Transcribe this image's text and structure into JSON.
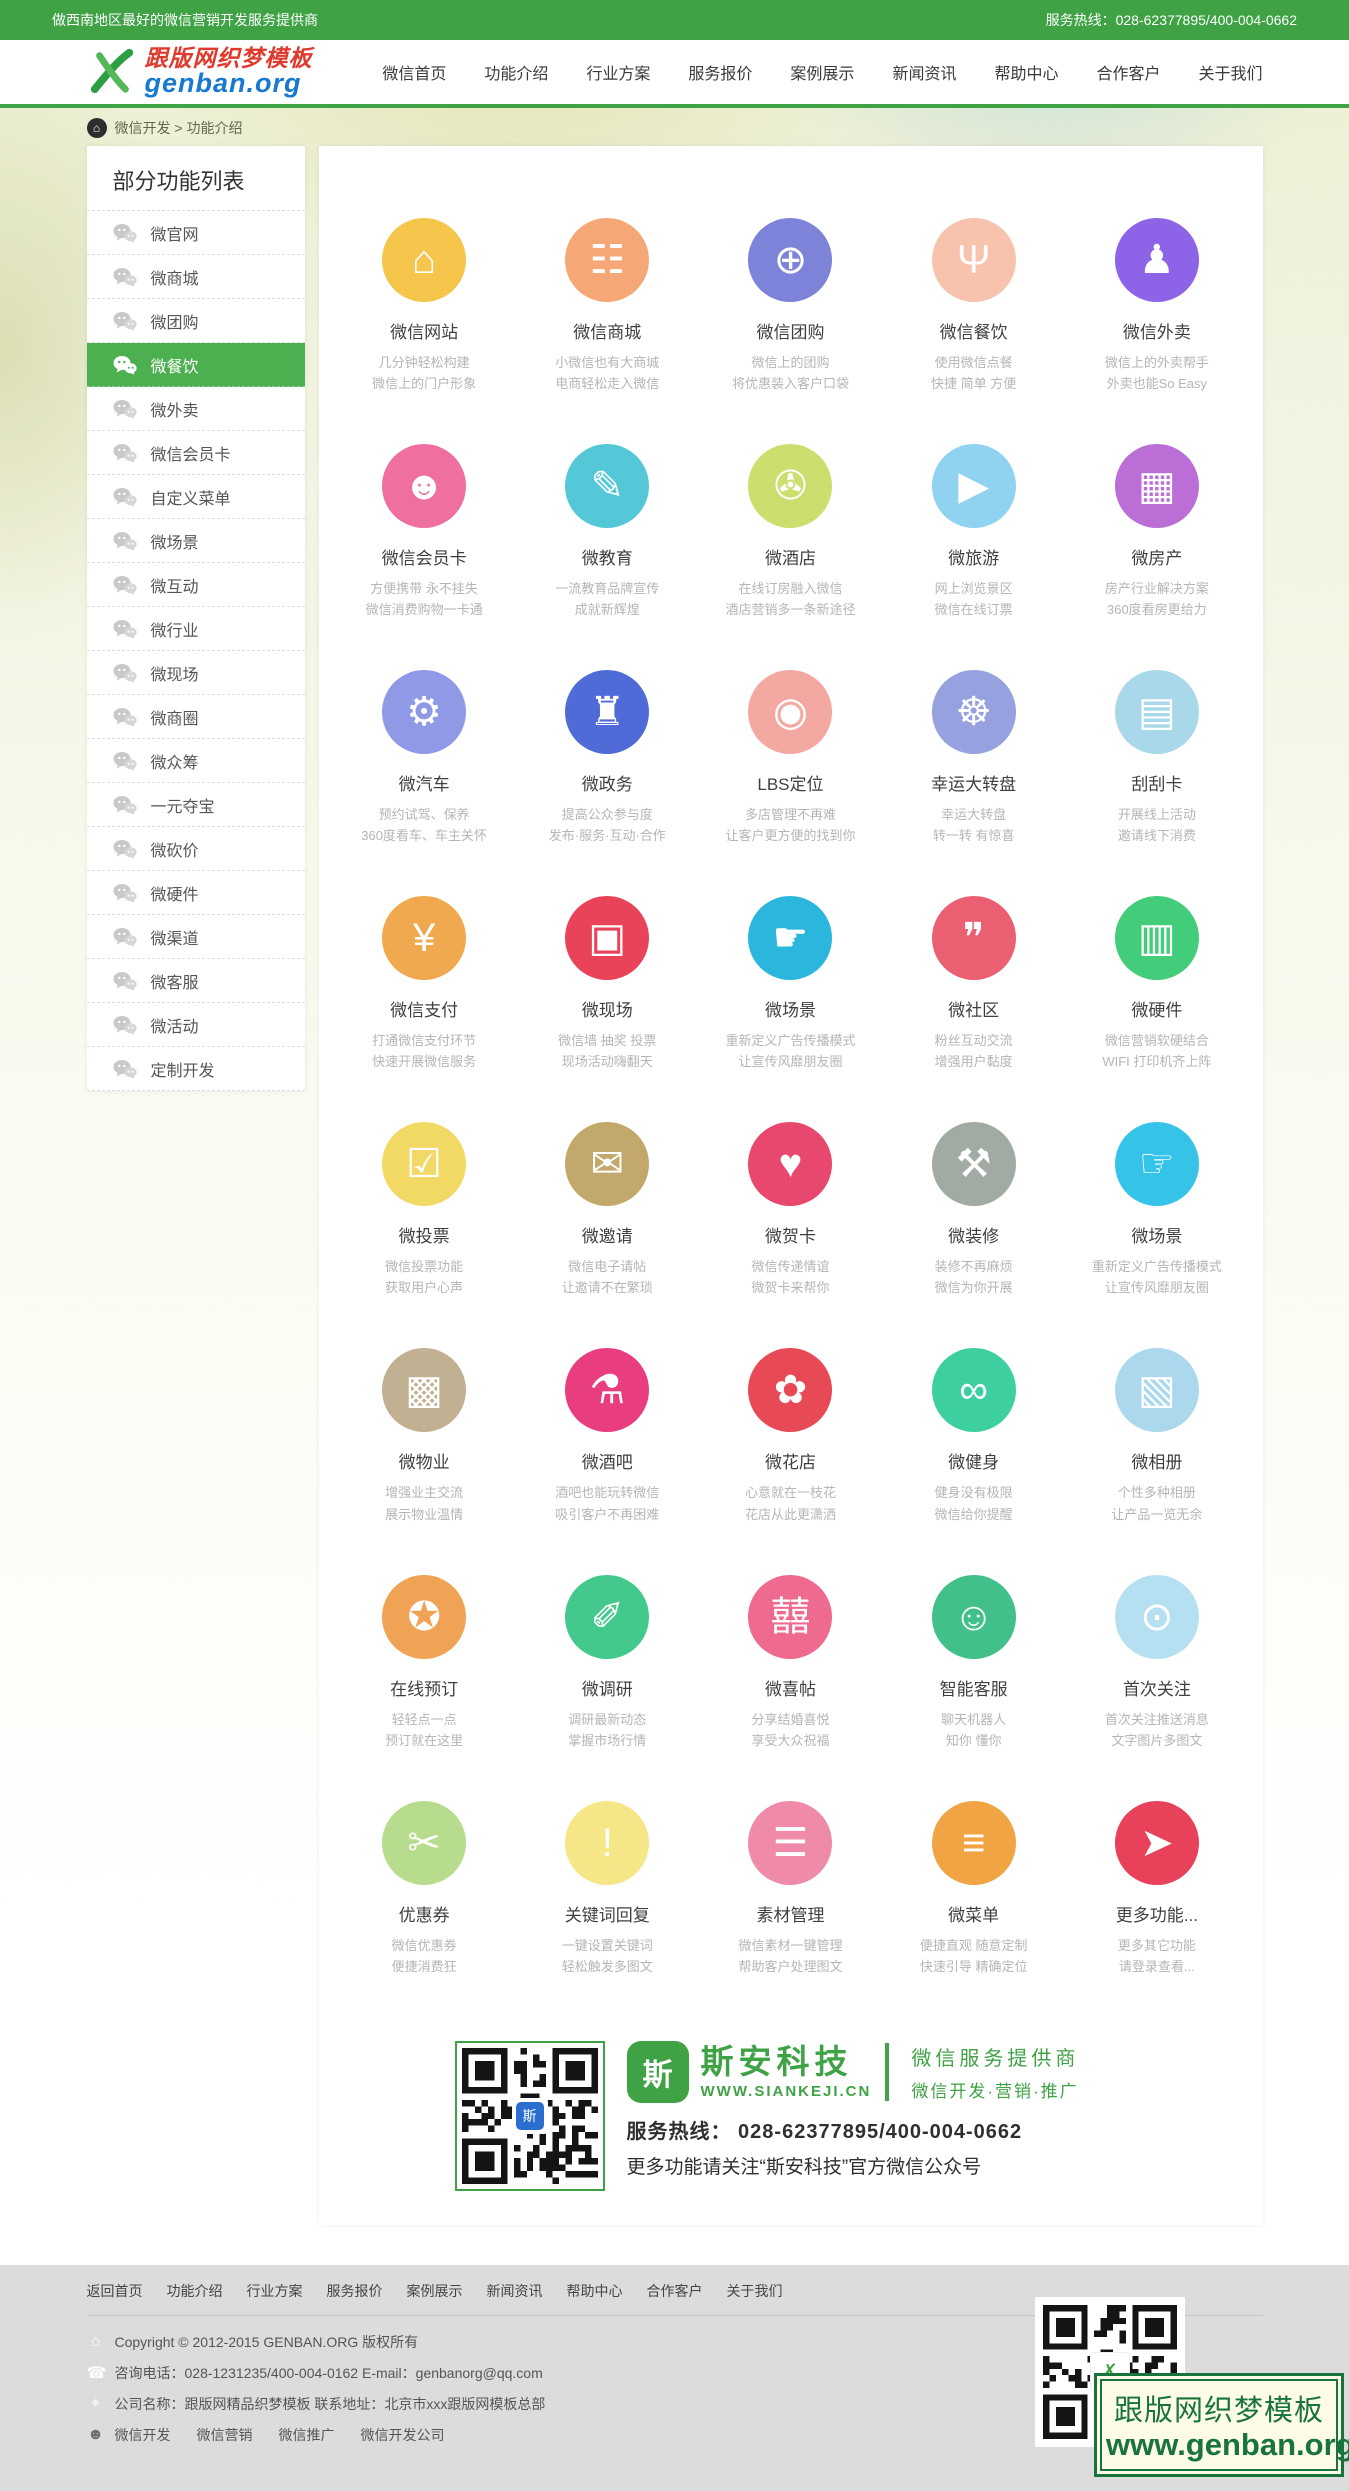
{
  "topbar": {
    "slogan": "做西南地区最好的微信营销开发服务提供商",
    "hotline": "服务热线：028-62377895/400-004-0662"
  },
  "header": {
    "logo": {
      "title": "跟版网织梦模板",
      "domain": "genban.org"
    },
    "nav": [
      {
        "label": "微信首页"
      },
      {
        "label": "功能介绍"
      },
      {
        "label": "行业方案"
      },
      {
        "label": "服务报价"
      },
      {
        "label": "案例展示"
      },
      {
        "label": "新闻资讯"
      },
      {
        "label": "帮助中心"
      },
      {
        "label": "合作客户"
      },
      {
        "label": "关于我们"
      }
    ]
  },
  "breadcrumb": {
    "path": "微信开发 > 功能介绍"
  },
  "sidebar": {
    "title": "部分功能列表",
    "active_index": 3,
    "items": [
      {
        "label": "微官网"
      },
      {
        "label": "微商城"
      },
      {
        "label": "微团购"
      },
      {
        "label": "微餐饮"
      },
      {
        "label": "微外卖"
      },
      {
        "label": "微信会员卡"
      },
      {
        "label": "自定义菜单"
      },
      {
        "label": "微场景"
      },
      {
        "label": "微互动"
      },
      {
        "label": "微行业"
      },
      {
        "label": "微现场"
      },
      {
        "label": "微商圈"
      },
      {
        "label": "微众筹"
      },
      {
        "label": "一元夺宝"
      },
      {
        "label": "微砍价"
      },
      {
        "label": "微硬件"
      },
      {
        "label": "微渠道"
      },
      {
        "label": "微客服"
      },
      {
        "label": "微活动"
      },
      {
        "label": "定制开发"
      }
    ]
  },
  "features": [
    {
      "label": "微信网站",
      "desc1": "几分钟轻松构建",
      "desc2": "微信上的门户形象",
      "color": "#f6c54c",
      "glyph": "⌂",
      "icon": "house-icon"
    },
    {
      "label": "微信商城",
      "desc1": "小微信也有大商城",
      "desc2": "电商轻松走入微信",
      "color": "#f5a876",
      "glyph": "☷",
      "icon": "shopping-cart-icon"
    },
    {
      "label": "微信团购",
      "desc1": "微信上的团购",
      "desc2": "将优惠装入客户口袋",
      "color": "#7c83d9",
      "glyph": "⊕",
      "icon": "groupbuy-icon"
    },
    {
      "label": "微信餐饮",
      "desc1": "使用微信点餐",
      "desc2": "快捷 简单 方便",
      "color": "#f8c3ad",
      "glyph": "Ψ",
      "icon": "cutlery-icon"
    },
    {
      "label": "微信外卖",
      "desc1": "微信上的外卖帮手",
      "desc2": "外卖也能So Easy",
      "color": "#8d63e8",
      "glyph": "♟",
      "icon": "delivery-person-icon"
    },
    {
      "label": "微信会员卡",
      "desc1": "方便携带 永不挂失",
      "desc2": "微信消费购物一卡通",
      "color": "#ee6fa0",
      "glyph": "☻",
      "icon": "member-card-icon"
    },
    {
      "label": "微教育",
      "desc1": "一流教育品牌宣传",
      "desc2": "成就新辉煌",
      "color": "#55c8d8",
      "glyph": "✎",
      "icon": "graduation-cap-icon"
    },
    {
      "label": "微酒店",
      "desc1": "在线订房融入微信",
      "desc2": "酒店营销多一条新途径",
      "color": "#cadf6e",
      "glyph": "✇",
      "icon": "key-icon"
    },
    {
      "label": "微旅游",
      "desc1": "网上浏览景区",
      "desc2": "微信在线订票",
      "color": "#8fd3f0",
      "glyph": "▶",
      "icon": "play-icon"
    },
    {
      "label": "微房产",
      "desc1": "房产行业解决方案",
      "desc2": "360度看房更给力",
      "color": "#bb6fd6",
      "glyph": "▦",
      "icon": "buildings-icon"
    },
    {
      "label": "微汽车",
      "desc1": "预约试驾、保养",
      "desc2": "360度看车、车主关怀",
      "color": "#8f99e6",
      "glyph": "⚙",
      "icon": "car-icon"
    },
    {
      "label": "微政务",
      "desc1": "提高公众参与度",
      "desc2": "发布·服务·互动·合作",
      "color": "#4f6bd8",
      "glyph": "♜",
      "icon": "government-building-icon"
    },
    {
      "label": "LBS定位",
      "desc1": "多店管理不再难",
      "desc2": "让客户更方便的找到你",
      "color": "#f4a8a2",
      "glyph": "◉",
      "icon": "location-pin-icon"
    },
    {
      "label": "幸运大转盘",
      "desc1": "幸运大转盘",
      "desc2": "转一转 有惊喜",
      "color": "#97a1e0",
      "glyph": "☸",
      "icon": "lucky-wheel-icon"
    },
    {
      "label": "刮刮卡",
      "desc1": "开展线上活动",
      "desc2": "邀请线下消费",
      "color": "#a8d8ea",
      "glyph": "▤",
      "icon": "scratch-card-icon"
    },
    {
      "label": "微信支付",
      "desc1": "打通微信支付环节",
      "desc2": "快速开展微信服务",
      "color": "#f0a94e",
      "glyph": "¥",
      "icon": "wallet-icon"
    },
    {
      "label": "微现场",
      "desc1": "微信墙 抽奖 投票",
      "desc2": "现场活动嗨翻天",
      "color": "#e84358",
      "glyph": "▣",
      "icon": "live-screen-icon"
    },
    {
      "label": "微场景",
      "desc1": "重新定义广告传播模式",
      "desc2": "让宣传风靡朋友圈",
      "color": "#2bb7dd",
      "glyph": "☛",
      "icon": "hand-gesture-icon"
    },
    {
      "label": "微社区",
      "desc1": "粉丝互动交流",
      "desc2": "增强用户黏度",
      "color": "#ea5f72",
      "glyph": "❞",
      "icon": "chat-bubbles-icon"
    },
    {
      "label": "微硬件",
      "desc1": "微信营销软硬结合",
      "desc2": "WIFI 打印机齐上阵",
      "color": "#43cc7a",
      "glyph": "▥",
      "icon": "hardware-icon"
    },
    {
      "label": "微投票",
      "desc1": "微信投票功能",
      "desc2": "获取用户心声",
      "color": "#f2d865",
      "glyph": "☑",
      "icon": "vote-icon"
    },
    {
      "label": "微邀请",
      "desc1": "微信电子请帖",
      "desc2": "让邀请不在繁琐",
      "color": "#c2a86b",
      "glyph": "✉",
      "icon": "invitation-icon"
    },
    {
      "label": "微贺卡",
      "desc1": "微信传递情谊",
      "desc2": "微贺卡来帮你",
      "color": "#e8476e",
      "glyph": "♥",
      "icon": "greeting-card-icon"
    },
    {
      "label": "微装修",
      "desc1": "装修不再麻烦",
      "desc2": "微信为你开展",
      "color": "#a2aaa4",
      "glyph": "⚒",
      "icon": "renovation-icon"
    },
    {
      "label": "微场景",
      "desc1": "重新定义广告传播模式",
      "desc2": "让宣传风靡朋友圈",
      "color": "#35c3e8",
      "glyph": "☞",
      "icon": "hand-gesture-icon"
    },
    {
      "label": "微物业",
      "desc1": "增强业主交流",
      "desc2": "展示物业温情",
      "color": "#c2b093",
      "glyph": "▩",
      "icon": "property-icon"
    },
    {
      "label": "微酒吧",
      "desc1": "酒吧也能玩转微信",
      "desc2": "吸引客户不再困难",
      "color": "#e83d7e",
      "glyph": "⚗",
      "icon": "cocktail-icon"
    },
    {
      "label": "微花店",
      "desc1": "心意就在一枝花",
      "desc2": "花店从此更潇洒",
      "color": "#e84a55",
      "glyph": "✿",
      "icon": "flower-icon"
    },
    {
      "label": "微健身",
      "desc1": "健身没有极限",
      "desc2": "微信给你提醒",
      "color": "#3ecfa0",
      "glyph": "∞",
      "icon": "dumbbell-icon"
    },
    {
      "label": "微相册",
      "desc1": "个性多种相册",
      "desc2": "让产品一览无余",
      "color": "#abd8ec",
      "glyph": "▧",
      "icon": "photo-album-icon"
    },
    {
      "label": "在线预订",
      "desc1": "轻轻点一点",
      "desc2": "预订就在这里",
      "color": "#f0a255",
      "glyph": "✪",
      "icon": "sale-badge-icon"
    },
    {
      "label": "微调研",
      "desc1": "调研最新动态",
      "desc2": "掌握市场行情",
      "color": "#43c98c",
      "glyph": "✐",
      "icon": "survey-clipboard-icon"
    },
    {
      "label": "微喜帖",
      "desc1": "分享结婚喜悦",
      "desc2": "享受大众祝福",
      "color": "#ee6a8e",
      "glyph": "囍",
      "icon": "double-happiness-icon"
    },
    {
      "label": "智能客服",
      "desc1": "聊天机器人",
      "desc2": "知你 懂你",
      "color": "#41c08a",
      "glyph": "☺",
      "icon": "robot-service-icon"
    },
    {
      "label": "首次关注",
      "desc1": "首次关注推送消息",
      "desc2": "文字图片多图文",
      "color": "#b5e0f2",
      "glyph": "⊙",
      "icon": "eye-icon"
    },
    {
      "label": "优惠券",
      "desc1": "微信优惠券",
      "desc2": "便捷消费狂",
      "color": "#b8dc8e",
      "glyph": "✂",
      "icon": "coupon-icon"
    },
    {
      "label": "关键词回复",
      "desc1": "一键设置关键词",
      "desc2": "轻松触发多图文",
      "color": "#f5e687",
      "glyph": "!",
      "icon": "keyword-reply-icon"
    },
    {
      "label": "素材管理",
      "desc1": "微信素材一键管理",
      "desc2": "帮助客户处理图文",
      "color": "#ef8aa8",
      "glyph": "☰",
      "icon": "material-stack-icon"
    },
    {
      "label": "微菜单",
      "desc1": "便捷直观 随意定制",
      "desc2": "快速引导 精确定位",
      "color": "#f0a444",
      "glyph": "≡",
      "icon": "menu-list-icon"
    },
    {
      "label": "更多功能...",
      "desc1": "更多其它功能",
      "desc2": "请登录查看...",
      "color": "#e8415a",
      "glyph": "➤",
      "icon": "more-arrow-icon"
    }
  ],
  "qr_section": {
    "mark_glyph": "斯",
    "qr_logo_glyph": "斯",
    "brand": "斯安科技",
    "website": "WWW.SIANKEJI.CN",
    "tagline1": "微信服务提供商",
    "tagline2": "微信开发·营销·推广",
    "hotline": "服务热线： 028-62377895/400-004-0662",
    "follow": "更多功能请关注“斯安科技”官方微信公众号"
  },
  "footer": {
    "links": [
      {
        "label": "返回首页"
      },
      {
        "label": "功能介绍"
      },
      {
        "label": "行业方案"
      },
      {
        "label": "服务报价"
      },
      {
        "label": "案例展示"
      },
      {
        "label": "新闻资讯"
      },
      {
        "label": "帮助中心"
      },
      {
        "label": "合作客户"
      },
      {
        "label": "关于我们"
      }
    ],
    "copyright": "Copyright © 2012-2015  GENBAN.ORG  版权所有",
    "contact": "咨询电话：028-1231235/400-004-0162  E-mail：genbanorg@qq.com",
    "company": "公司名称：跟版网精品织梦模板  联系地址：北京市xxx跟版网模板总部",
    "tags": [
      {
        "label": "微信开发"
      },
      {
        "label": "微信营销"
      },
      {
        "label": "微信推广"
      },
      {
        "label": "微信开发公司"
      }
    ],
    "qr_caption": "微信",
    "qr_logo_glyph": "✗"
  },
  "watermark": {
    "line1": "跟版网织梦模板",
    "line2": "www.genban.org"
  },
  "icons": {
    "home": "⌂",
    "phone": "☎",
    "location": "⌖",
    "person": "☻",
    "breadcrumb_home": "⌂"
  }
}
